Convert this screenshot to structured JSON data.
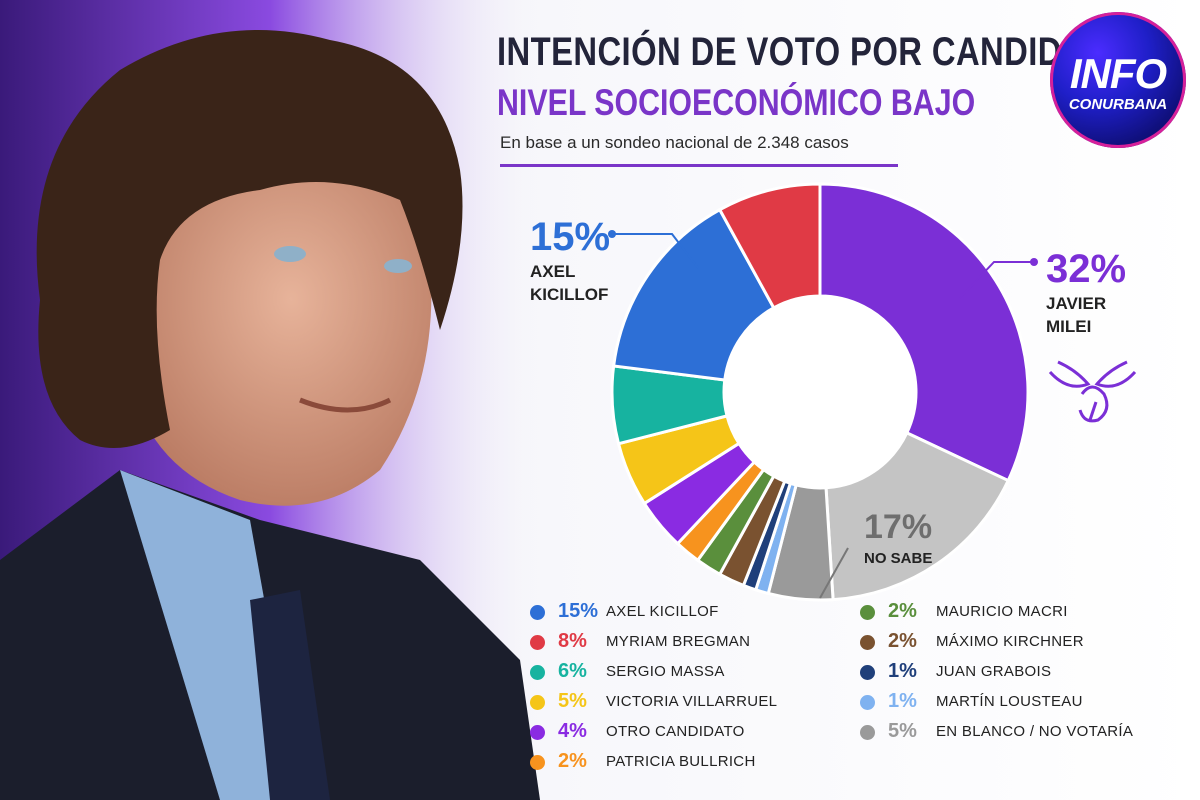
{
  "header": {
    "title": "INTENCIÓN DE VOTO POR CANDIDATO",
    "subtitle": "NIVEL SOCIOECONÓMICO BAJO",
    "basis": "En base a un sondeo nacional de 2.348 casos"
  },
  "logo": {
    "line1": "INFO",
    "line2": "CONURBANA"
  },
  "colors": {
    "accent": "#7a35c8",
    "title": "#23243a"
  },
  "callouts": {
    "kicillof": {
      "pct": "15%",
      "name_line1": "AXEL",
      "name_line2": "KICILLOF"
    },
    "milei": {
      "pct": "32%",
      "name_line1": "JAVIER",
      "name_line2": "MILEI"
    },
    "no_sabe": {
      "pct": "17%",
      "name": "NO SABE"
    }
  },
  "legend": {
    "left": [
      {
        "pct": "15%",
        "name": "AXEL KICILLOF",
        "color": "#2d6fd6"
      },
      {
        "pct": "8%",
        "name": "MYRIAM BREGMAN",
        "color": "#e03a45"
      },
      {
        "pct": "6%",
        "name": "SERGIO MASSA",
        "color": "#17b3a0"
      },
      {
        "pct": "5%",
        "name": "VICTORIA VILLARRUEL",
        "color": "#f5c518"
      },
      {
        "pct": "4%",
        "name": "OTRO CANDIDATO",
        "color": "#8a2be2"
      },
      {
        "pct": "2%",
        "name": "PATRICIA BULLRICH",
        "color": "#f7931e"
      }
    ],
    "right": [
      {
        "pct": "2%",
        "name": "MAURICIO MACRI",
        "color": "#5a8f3c"
      },
      {
        "pct": "2%",
        "name": "MÁXIMO KIRCHNER",
        "color": "#7a5230"
      },
      {
        "pct": "1%",
        "name": "JUAN GRABOIS",
        "color": "#1f3f7a"
      },
      {
        "pct": "1%",
        "name": "MARTÍN LOUSTEAU",
        "color": "#7fb2f0"
      },
      {
        "pct": "5%",
        "name": "EN BLANCO / NO VOTARÍA",
        "color": "#9a9a9a"
      }
    ]
  },
  "chart_data": {
    "type": "pie",
    "variant": "donut",
    "title": "INTENCIÓN DE VOTO POR CANDIDATO",
    "subtitle": "NIVEL SOCIOECONÓMICO BAJO",
    "slices": [
      {
        "label": "JAVIER MILEI",
        "value": 32,
        "color": "#7b2fd6"
      },
      {
        "label": "NO SABE",
        "value": 17,
        "color": "#c4c4c4"
      },
      {
        "label": "EN BLANCO / NO VOTARÍA",
        "value": 5,
        "color": "#9a9a9a"
      },
      {
        "label": "MARTÍN LOUSTEAU",
        "value": 1,
        "color": "#7fb2f0"
      },
      {
        "label": "JUAN GRABOIS",
        "value": 1,
        "color": "#1f3f7a"
      },
      {
        "label": "MÁXIMO KIRCHNER",
        "value": 2,
        "color": "#7a5230"
      },
      {
        "label": "MAURICIO MACRI",
        "value": 2,
        "color": "#5a8f3c"
      },
      {
        "label": "PATRICIA BULLRICH",
        "value": 2,
        "color": "#f7931e"
      },
      {
        "label": "OTRO CANDIDATO",
        "value": 4,
        "color": "#8a2be2"
      },
      {
        "label": "VICTORIA VILLARRUEL",
        "value": 5,
        "color": "#f5c518"
      },
      {
        "label": "SERGIO MASSA",
        "value": 6,
        "color": "#17b3a0"
      },
      {
        "label": "AXEL KICILLOF",
        "value": 15,
        "color": "#2d6fd6"
      },
      {
        "label": "MYRIAM BREGMAN",
        "value": 8,
        "color": "#e03a45"
      }
    ]
  }
}
